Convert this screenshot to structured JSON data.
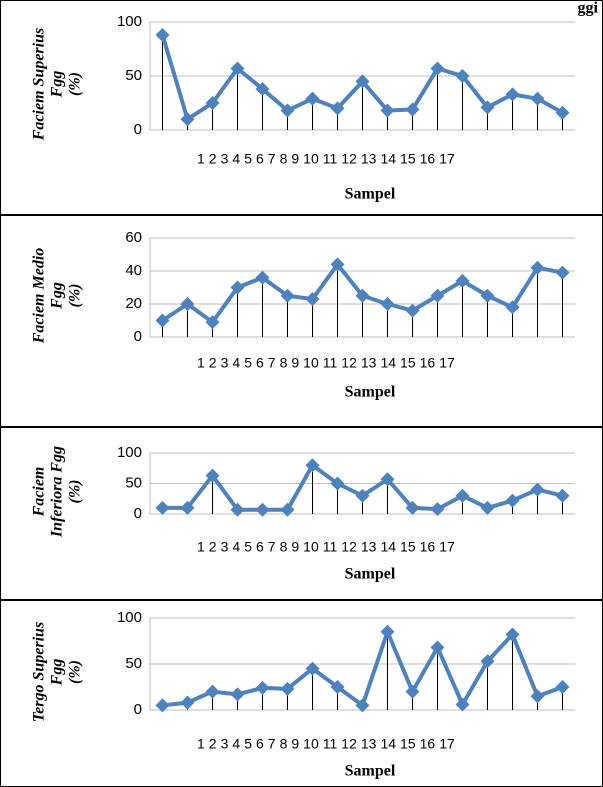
{
  "chart_data": [
    {
      "type": "line",
      "title": "ggi",
      "ylabel": [
        "Faciem Superius",
        "Fgg",
        "(%)"
      ],
      "xlabel": "Sampel",
      "categories": [
        "1",
        "2",
        "3",
        "4",
        "5",
        "6",
        "7",
        "8",
        "9",
        "10",
        "11",
        "12",
        "13",
        "14",
        "15",
        "16",
        "17"
      ],
      "series": [
        {
          "color": "#4f81bd",
          "values": [
            88,
            10,
            25,
            57,
            38,
            18,
            29,
            20,
            45,
            18,
            19,
            57,
            50,
            21,
            33,
            29,
            16
          ]
        }
      ],
      "ylim": [
        0,
        100
      ],
      "yticks": [
        0,
        50,
        100
      ],
      "grid": true
    },
    {
      "type": "line",
      "ylabel": [
        "Faciem Medio",
        "Fgg",
        "(%)"
      ],
      "xlabel": "Sampel",
      "categories": [
        "1",
        "2",
        "3",
        "4",
        "5",
        "6",
        "7",
        "8",
        "9",
        "10",
        "11",
        "12",
        "13",
        "14",
        "15",
        "16",
        "17"
      ],
      "series": [
        {
          "color": "#4f81bd",
          "values": [
            10,
            20,
            9,
            30,
            36,
            25,
            23,
            44,
            25,
            20,
            16,
            25,
            34,
            25,
            18,
            42,
            39
          ]
        }
      ],
      "ylim": [
        0,
        60
      ],
      "yticks": [
        0,
        20,
        40,
        60
      ],
      "grid": true
    },
    {
      "type": "line",
      "ylabel": [
        "Faciem",
        "Inferiora Fgg",
        "(%)"
      ],
      "xlabel": "Sampel",
      "categories": [
        "1",
        "2",
        "3",
        "4",
        "5",
        "6",
        "7",
        "8",
        "9",
        "10",
        "11",
        "12",
        "13",
        "14",
        "15",
        "16",
        "17"
      ],
      "series": [
        {
          "color": "#4f81bd",
          "values": [
            10,
            10,
            63,
            7,
            7,
            7,
            80,
            50,
            30,
            57,
            10,
            8,
            30,
            10,
            22,
            40,
            30
          ]
        }
      ],
      "ylim": [
        0,
        100
      ],
      "yticks": [
        0,
        50,
        100
      ],
      "grid": true
    },
    {
      "type": "line",
      "ylabel": [
        "Tergo Superius",
        "Fgg",
        "(%)"
      ],
      "xlabel": "Sampel",
      "categories": [
        "1",
        "2",
        "3",
        "4",
        "5",
        "6",
        "7",
        "8",
        "9",
        "10",
        "11",
        "12",
        "13",
        "14",
        "15",
        "16",
        "17"
      ],
      "series": [
        {
          "color": "#4f81bd",
          "values": [
            5,
            8,
            20,
            17,
            24,
            23,
            45,
            25,
            5,
            85,
            20,
            68,
            6,
            53,
            82,
            15,
            25
          ]
        }
      ],
      "ylim": [
        0,
        100
      ],
      "yticks": [
        0,
        50,
        100
      ],
      "grid": true
    }
  ]
}
